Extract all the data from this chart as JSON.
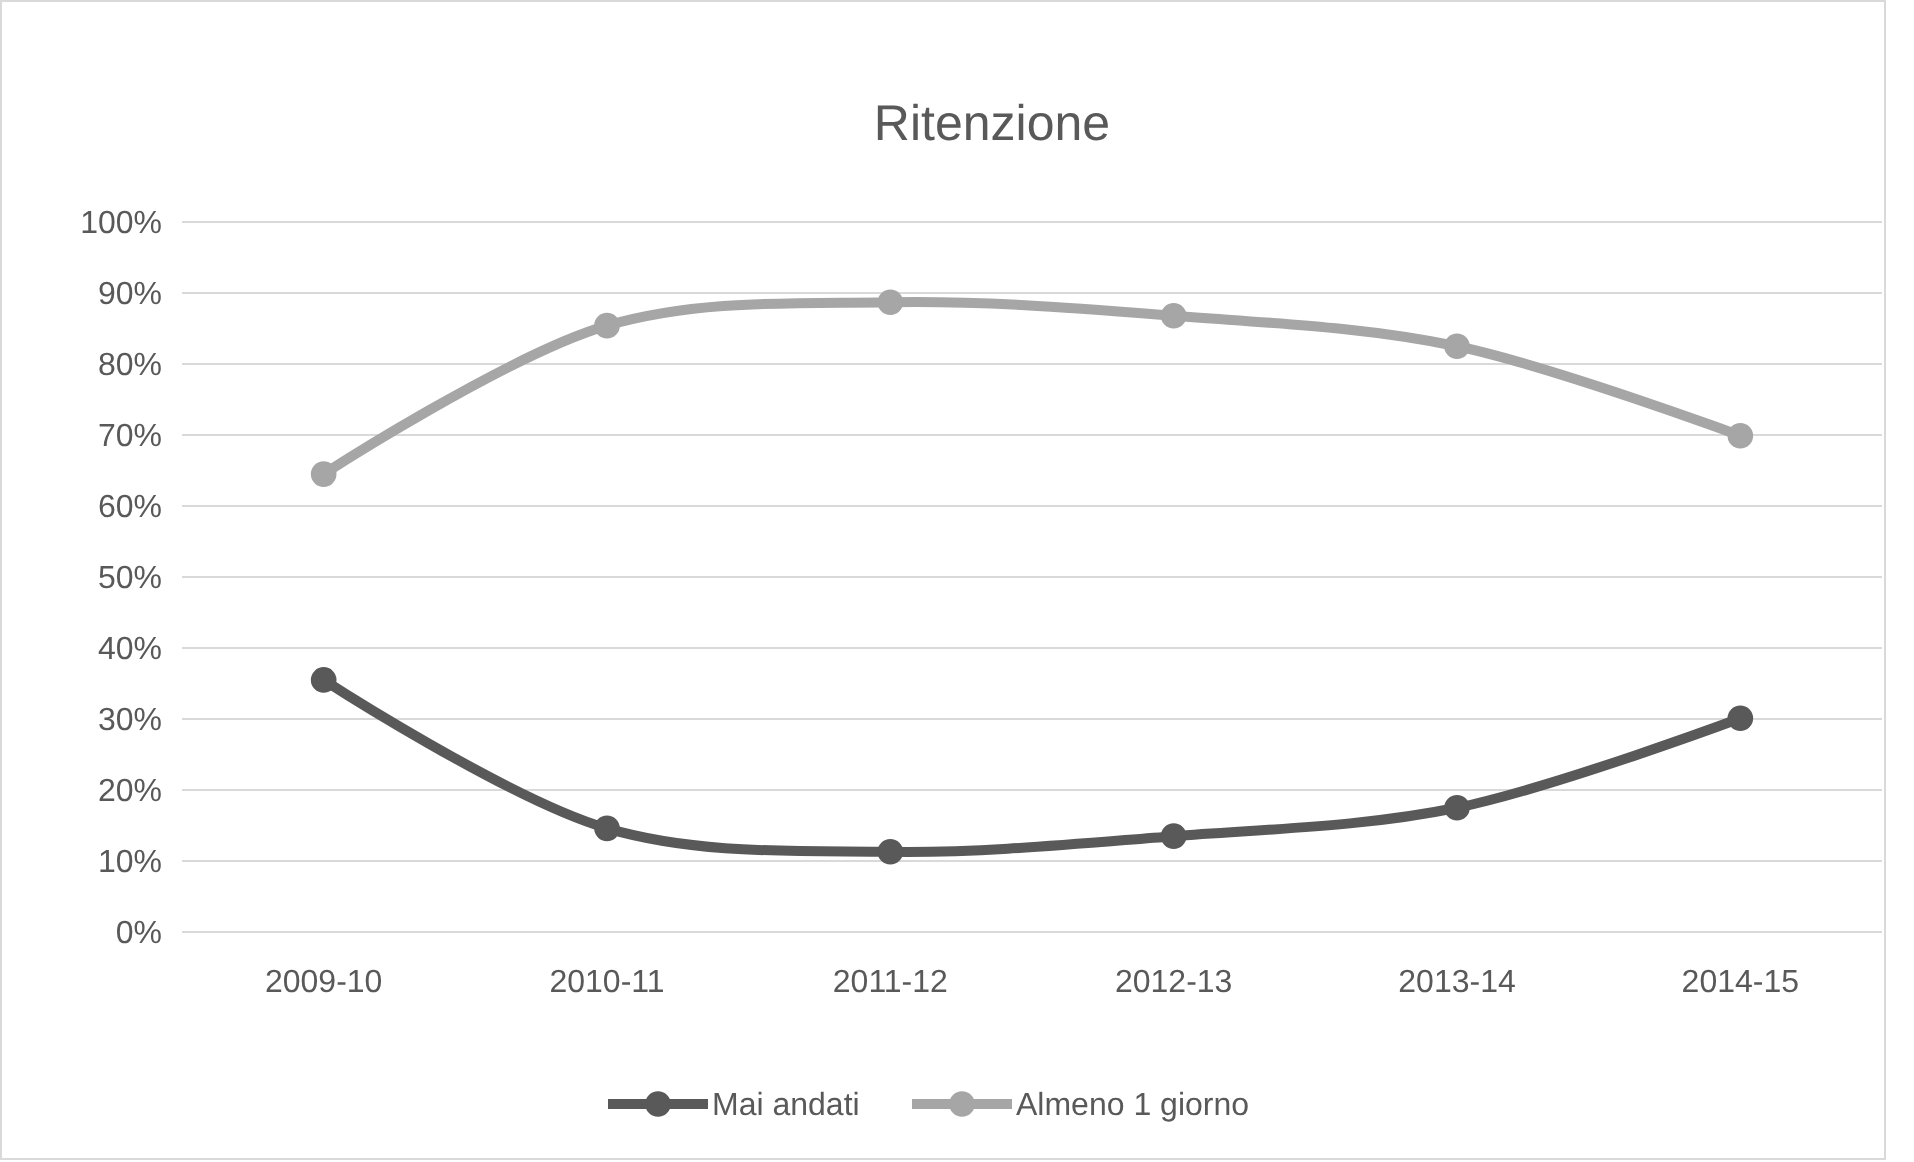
{
  "chart_data": {
    "type": "line",
    "title": "Ritenzione",
    "categories": [
      "2009-10",
      "2010-11",
      "2011-12",
      "2012-13",
      "2013-14",
      "2014-15"
    ],
    "series": [
      {
        "name": "Mai andati",
        "color": "#595959",
        "values": [
          35.5,
          14.6,
          11.3,
          13.5,
          17.5,
          30.1
        ]
      },
      {
        "name": "Almeno 1 giorno",
        "color": "#a6a6a6",
        "values": [
          64.5,
          85.4,
          88.7,
          86.8,
          82.5,
          69.9
        ]
      }
    ],
    "ylim": [
      0,
      100
    ],
    "yticks": [
      {
        "value": 0,
        "label": "0%"
      },
      {
        "value": 10,
        "label": "10%"
      },
      {
        "value": 20,
        "label": "20%"
      },
      {
        "value": 30,
        "label": "30%"
      },
      {
        "value": 40,
        "label": "40%"
      },
      {
        "value": 50,
        "label": "50%"
      },
      {
        "value": 60,
        "label": "60%"
      },
      {
        "value": 70,
        "label": "70%"
      },
      {
        "value": 80,
        "label": "80%"
      },
      {
        "value": 90,
        "label": "90%"
      },
      {
        "value": 100,
        "label": "100%"
      }
    ],
    "grid": "y",
    "legend": "bottom",
    "marker": "circle",
    "line_style": "solid"
  }
}
